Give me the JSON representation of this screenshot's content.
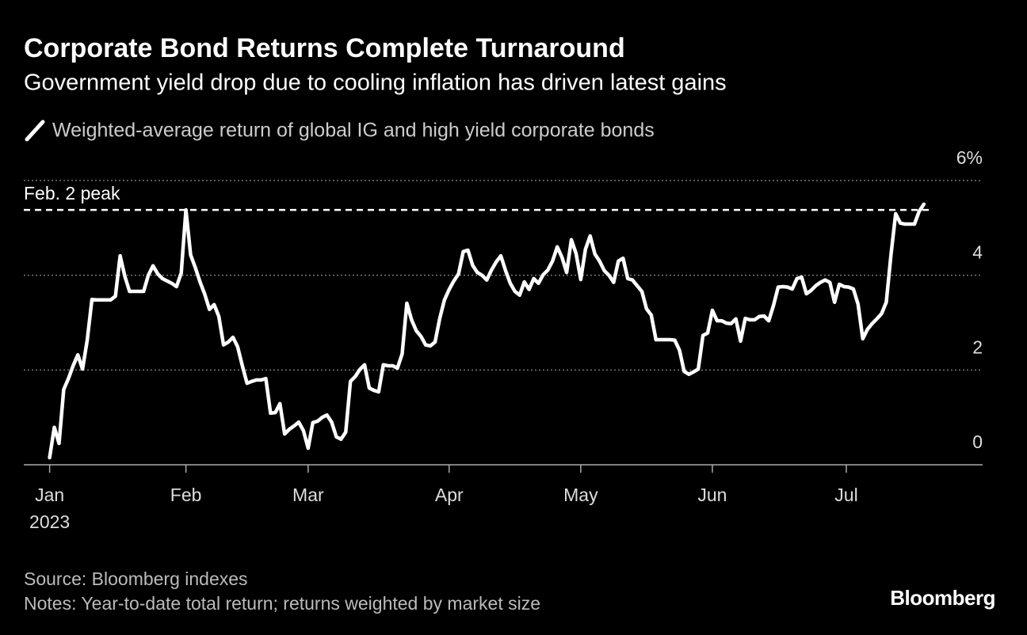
{
  "chart_data": {
    "type": "line",
    "title": "Corporate Bond Returns Complete Turnaround",
    "subtitle": "Government yield drop due to cooling inflation has driven latest gains",
    "series": [
      {
        "name": "Weighted-average return of global IG and high yield corporate bonds",
        "color": "#ffffff",
        "values": [
          0.15,
          0.79,
          0.45,
          1.59,
          1.82,
          2.09,
          2.32,
          2.02,
          2.63,
          3.49,
          3.48,
          3.48,
          3.48,
          3.48,
          3.56,
          4.41,
          3.98,
          3.66,
          3.66,
          3.66,
          3.66,
          4.0,
          4.2,
          4.03,
          3.93,
          3.88,
          3.83,
          3.76,
          4.05,
          5.38,
          4.43,
          4.16,
          3.86,
          3.6,
          3.28,
          3.38,
          3.13,
          2.53,
          2.59,
          2.69,
          2.49,
          2.09,
          1.72,
          1.76,
          1.79,
          1.79,
          1.82,
          1.09,
          1.1,
          1.29,
          0.65,
          0.75,
          0.82,
          0.9,
          0.72,
          0.35,
          0.89,
          0.92,
          1.0,
          1.05,
          0.9,
          0.59,
          0.54,
          0.69,
          1.76,
          1.86,
          2.01,
          2.11,
          1.62,
          1.57,
          1.54,
          2.11,
          2.09,
          2.09,
          2.04,
          2.34,
          3.41,
          3.06,
          2.83,
          2.71,
          2.53,
          2.51,
          2.59,
          3.09,
          3.48,
          3.7,
          3.88,
          4.03,
          4.5,
          4.53,
          4.21,
          4.06,
          4.0,
          3.9,
          4.11,
          4.28,
          4.41,
          4.1,
          3.83,
          3.66,
          3.58,
          3.86,
          3.7,
          3.93,
          3.83,
          4.01,
          4.11,
          4.3,
          4.6,
          4.38,
          4.06,
          4.75,
          4.46,
          3.91,
          4.55,
          4.83,
          4.45,
          4.3,
          4.1,
          4.0,
          3.85,
          4.3,
          4.36,
          3.93,
          3.9,
          3.78,
          3.66,
          3.29,
          3.16,
          2.64,
          2.64,
          2.64,
          2.64,
          2.63,
          2.42,
          1.97,
          1.91,
          1.96,
          2.02,
          2.73,
          2.78,
          3.26,
          3.04,
          3.04,
          2.99,
          2.98,
          3.08,
          2.61,
          3.09,
          3.06,
          3.06,
          3.13,
          3.14,
          3.04,
          3.36,
          3.75,
          3.76,
          3.75,
          3.71,
          3.93,
          3.96,
          3.61,
          3.68,
          3.78,
          3.85,
          3.9,
          3.85,
          3.43,
          3.81,
          3.76,
          3.75,
          3.71,
          3.39,
          2.66,
          2.86,
          2.98,
          3.08,
          3.19,
          3.43,
          4.43,
          5.3,
          5.1,
          5.08,
          5.08,
          5.08,
          5.35,
          5.5
        ]
      }
    ],
    "xlim": [
      -5.5,
      198.5
    ],
    "xticks": [
      {
        "value": 0,
        "label": "Jan"
      },
      {
        "value": 29,
        "label": "Feb"
      },
      {
        "value": 55,
        "label": "Mar"
      },
      {
        "value": 85,
        "label": "Apr"
      },
      {
        "value": 113,
        "label": "May"
      },
      {
        "value": 141,
        "label": "Jun"
      },
      {
        "value": 169.5,
        "label": "Jul"
      }
    ],
    "year": "2023",
    "ylim": [
      0,
      6
    ],
    "yticks": [
      0,
      2,
      4,
      {
        "value": 6,
        "label": "6%"
      }
    ],
    "grid": true,
    "annotation": {
      "value": 5.38,
      "label": "Feb. 2 peak"
    },
    "source": "Source: Bloomberg indexes",
    "notes": "Notes: Year-to-date total return; returns weighted by market size",
    "credit": "Bloomberg"
  }
}
